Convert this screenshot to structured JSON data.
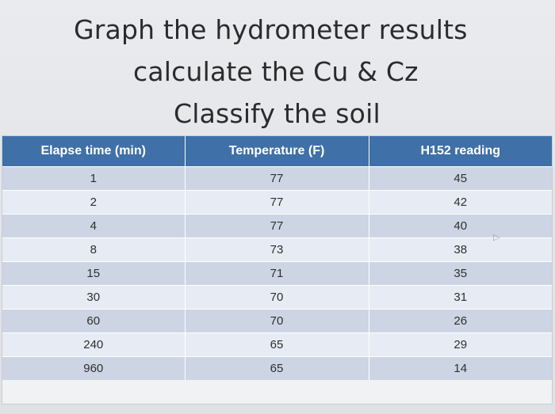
{
  "slide": {
    "title_lines": [
      "Graph the hydrometer results",
      "calculate the Cu & Cz",
      "Classify the soil"
    ]
  },
  "table": {
    "headers": [
      "Elapse time (min)",
      "Temperature (F)",
      "H152 reading"
    ],
    "rows": [
      [
        "1",
        "77",
        "45"
      ],
      [
        "2",
        "77",
        "42"
      ],
      [
        "4",
        "77",
        "40"
      ],
      [
        "8",
        "73",
        "38"
      ],
      [
        "15",
        "71",
        "35"
      ],
      [
        "30",
        "70",
        "31"
      ],
      [
        "60",
        "70",
        "26"
      ],
      [
        "240",
        "65",
        "29"
      ],
      [
        "960",
        "65",
        "14"
      ]
    ]
  },
  "colors": {
    "header_bg": "#3f70a8",
    "row_odd": "#cdd5e4",
    "row_even": "#e7ebf3"
  },
  "icons": {
    "cursor": "mouse-cursor-icon"
  }
}
